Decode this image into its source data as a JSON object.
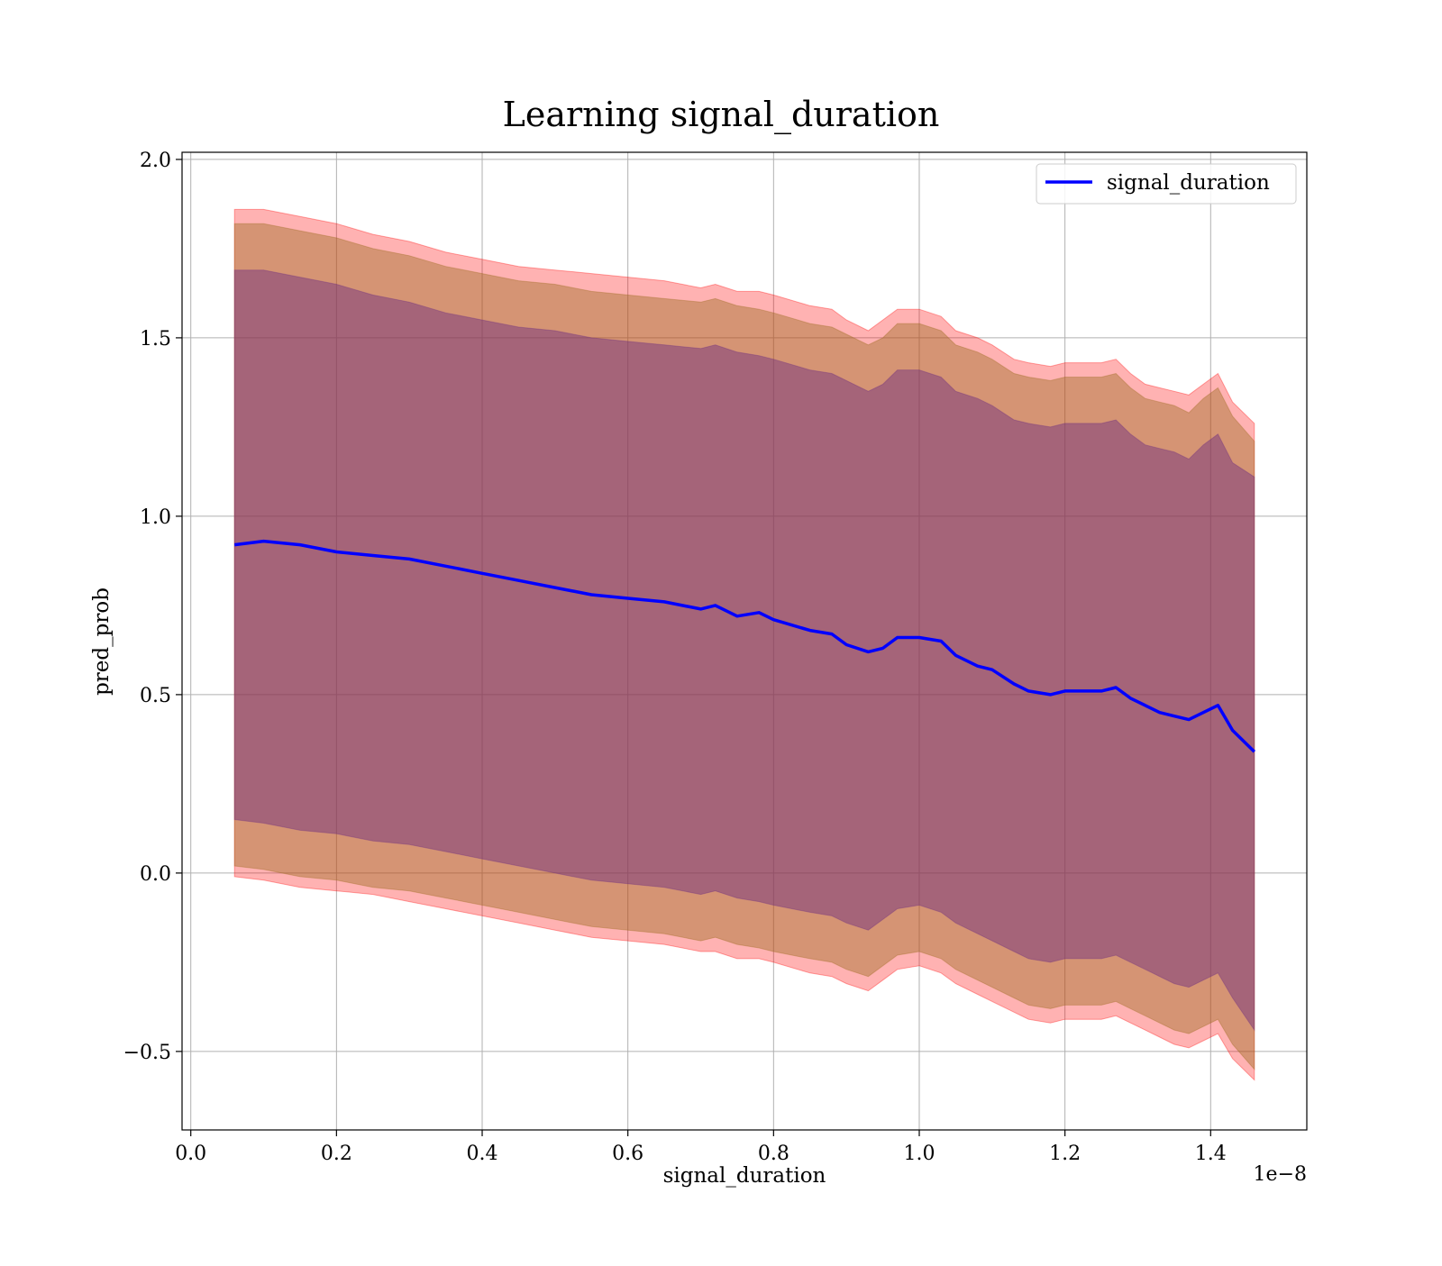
{
  "chart_data": {
    "type": "line",
    "title": "Learning signal_duration",
    "xlabel": "signal_duration",
    "ylabel": "pred_prob",
    "x_offset_text": "1e−8",
    "x_scale": 1e-08,
    "xlim": [
      -0.012,
      1.532
    ],
    "ylim": [
      -0.72,
      2.02
    ],
    "grid": true,
    "legend": {
      "placement": "top-right",
      "entries": [
        "signal_duration"
      ]
    },
    "x_ticks": [
      0.0,
      0.2,
      0.4,
      0.6,
      0.8,
      1.0,
      1.2,
      1.4
    ],
    "x_tick_labels": [
      "0.0",
      "0.2",
      "0.4",
      "0.6",
      "0.8",
      "1.0",
      "1.2",
      "1.4"
    ],
    "y_ticks": [
      -0.5,
      0.0,
      0.5,
      1.0,
      1.5,
      2.0
    ],
    "y_tick_labels": [
      "−0.5",
      "0.0",
      "0.5",
      "1.0",
      "1.5",
      "2.0"
    ],
    "colors": {
      "line": "#0000ff",
      "band_outer": "#ff0000",
      "band_middle": "#9a6b1e",
      "band_inner": "#6a2a80",
      "grid": "#b0b0b0"
    },
    "x": [
      0.06,
      0.1,
      0.15,
      0.2,
      0.25,
      0.3,
      0.35,
      0.4,
      0.45,
      0.5,
      0.55,
      0.6,
      0.65,
      0.7,
      0.72,
      0.75,
      0.78,
      0.8,
      0.85,
      0.88,
      0.9,
      0.93,
      0.95,
      0.97,
      1.0,
      1.03,
      1.05,
      1.08,
      1.1,
      1.13,
      1.15,
      1.18,
      1.2,
      1.23,
      1.25,
      1.27,
      1.29,
      1.31,
      1.33,
      1.35,
      1.37,
      1.39,
      1.41,
      1.43,
      1.46
    ],
    "series": [
      {
        "name": "signal_duration",
        "values": [
          0.92,
          0.93,
          0.92,
          0.9,
          0.89,
          0.88,
          0.86,
          0.84,
          0.82,
          0.8,
          0.78,
          0.77,
          0.76,
          0.74,
          0.75,
          0.72,
          0.73,
          0.71,
          0.68,
          0.67,
          0.64,
          0.62,
          0.63,
          0.66,
          0.66,
          0.65,
          0.61,
          0.58,
          0.57,
          0.53,
          0.51,
          0.5,
          0.51,
          0.51,
          0.51,
          0.52,
          0.49,
          0.47,
          0.45,
          0.44,
          0.43,
          0.45,
          0.47,
          0.4,
          0.34
        ]
      }
    ],
    "bands": [
      {
        "level": "outer",
        "upper": [
          1.86,
          1.86,
          1.84,
          1.82,
          1.79,
          1.77,
          1.74,
          1.72,
          1.7,
          1.69,
          1.68,
          1.67,
          1.66,
          1.64,
          1.65,
          1.63,
          1.63,
          1.62,
          1.59,
          1.58,
          1.55,
          1.52,
          1.55,
          1.58,
          1.58,
          1.56,
          1.52,
          1.5,
          1.48,
          1.44,
          1.43,
          1.42,
          1.43,
          1.43,
          1.43,
          1.44,
          1.4,
          1.37,
          1.36,
          1.35,
          1.34,
          1.37,
          1.4,
          1.32,
          1.26
        ],
        "lower": [
          -0.01,
          -0.02,
          -0.04,
          -0.05,
          -0.06,
          -0.08,
          -0.1,
          -0.12,
          -0.14,
          -0.16,
          -0.18,
          -0.19,
          -0.2,
          -0.22,
          -0.22,
          -0.24,
          -0.24,
          -0.25,
          -0.28,
          -0.29,
          -0.31,
          -0.33,
          -0.3,
          -0.27,
          -0.26,
          -0.28,
          -0.31,
          -0.34,
          -0.36,
          -0.39,
          -0.41,
          -0.42,
          -0.41,
          -0.41,
          -0.41,
          -0.4,
          -0.42,
          -0.44,
          -0.46,
          -0.48,
          -0.49,
          -0.47,
          -0.45,
          -0.52,
          -0.58
        ]
      },
      {
        "level": "middle",
        "upper": [
          1.82,
          1.82,
          1.8,
          1.78,
          1.75,
          1.73,
          1.7,
          1.68,
          1.66,
          1.65,
          1.63,
          1.62,
          1.61,
          1.6,
          1.61,
          1.59,
          1.58,
          1.57,
          1.54,
          1.53,
          1.51,
          1.48,
          1.5,
          1.54,
          1.54,
          1.52,
          1.48,
          1.46,
          1.44,
          1.4,
          1.39,
          1.38,
          1.39,
          1.39,
          1.39,
          1.4,
          1.36,
          1.33,
          1.32,
          1.31,
          1.29,
          1.33,
          1.36,
          1.28,
          1.21
        ],
        "lower": [
          0.02,
          0.01,
          -0.01,
          -0.02,
          -0.04,
          -0.05,
          -0.07,
          -0.09,
          -0.11,
          -0.13,
          -0.15,
          -0.16,
          -0.17,
          -0.19,
          -0.18,
          -0.2,
          -0.21,
          -0.22,
          -0.24,
          -0.25,
          -0.27,
          -0.29,
          -0.26,
          -0.23,
          -0.22,
          -0.24,
          -0.27,
          -0.3,
          -0.32,
          -0.35,
          -0.37,
          -0.38,
          -0.37,
          -0.37,
          -0.37,
          -0.36,
          -0.38,
          -0.4,
          -0.42,
          -0.44,
          -0.45,
          -0.43,
          -0.41,
          -0.48,
          -0.55
        ]
      },
      {
        "level": "inner",
        "upper": [
          1.69,
          1.69,
          1.67,
          1.65,
          1.62,
          1.6,
          1.57,
          1.55,
          1.53,
          1.52,
          1.5,
          1.49,
          1.48,
          1.47,
          1.48,
          1.46,
          1.45,
          1.44,
          1.41,
          1.4,
          1.38,
          1.35,
          1.37,
          1.41,
          1.41,
          1.39,
          1.35,
          1.33,
          1.31,
          1.27,
          1.26,
          1.25,
          1.26,
          1.26,
          1.26,
          1.27,
          1.23,
          1.2,
          1.19,
          1.18,
          1.16,
          1.2,
          1.23,
          1.15,
          1.11
        ],
        "lower": [
          0.15,
          0.14,
          0.12,
          0.11,
          0.09,
          0.08,
          0.06,
          0.04,
          0.02,
          0.0,
          -0.02,
          -0.03,
          -0.04,
          -0.06,
          -0.05,
          -0.07,
          -0.08,
          -0.09,
          -0.11,
          -0.12,
          -0.14,
          -0.16,
          -0.13,
          -0.1,
          -0.09,
          -0.11,
          -0.14,
          -0.17,
          -0.19,
          -0.22,
          -0.24,
          -0.25,
          -0.24,
          -0.24,
          -0.24,
          -0.23,
          -0.25,
          -0.27,
          -0.29,
          -0.31,
          -0.32,
          -0.3,
          -0.28,
          -0.35,
          -0.44
        ]
      }
    ]
  }
}
